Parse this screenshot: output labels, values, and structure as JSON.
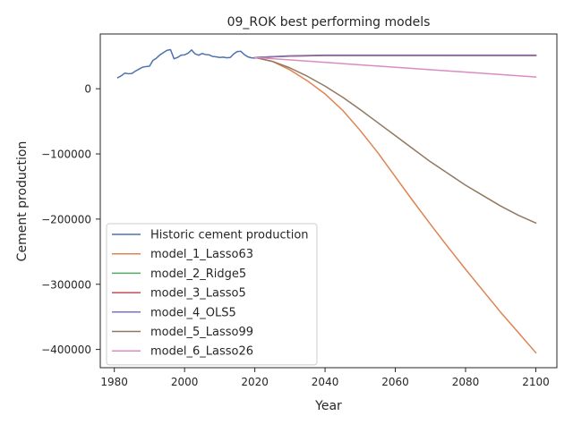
{
  "chart_data": {
    "type": "line",
    "title": "09_ROK best performing models",
    "xlabel": "Year",
    "ylabel": "Cement production",
    "xlim": [
      1976,
      2106
    ],
    "ylim": [
      -428000,
      84000
    ],
    "xticks": [
      1980,
      2000,
      2020,
      2040,
      2060,
      2080,
      2100
    ],
    "xtick_labels": [
      "1980",
      "2000",
      "2020",
      "2040",
      "2060",
      "2080",
      "2100"
    ],
    "yticks": [
      0,
      -100000,
      -200000,
      -300000,
      -400000
    ],
    "ytick_labels": [
      "0",
      "−100000",
      "−200000",
      "−300000",
      "−400000"
    ],
    "grid": false,
    "legend_position": "lower-left",
    "series": [
      {
        "name": "Historic cement production",
        "color": "#4c72b0",
        "x": [
          1981,
          1982,
          1983,
          1984,
          1985,
          1986,
          1987,
          1988,
          1989,
          1990,
          1991,
          1992,
          1993,
          1994,
          1995,
          1996,
          1997,
          1998,
          1999,
          2000,
          2001,
          2002,
          2003,
          2004,
          2005,
          2006,
          2007,
          2008,
          2009,
          2010,
          2011,
          2012,
          2013,
          2014,
          2015,
          2016,
          2017,
          2018,
          2019,
          2020
        ],
        "y": [
          17000,
          20000,
          24000,
          23000,
          23500,
          27000,
          30000,
          33000,
          34000,
          34500,
          43500,
          47000,
          52000,
          55500,
          59000,
          60000,
          46000,
          48000,
          51500,
          52000,
          54500,
          59500,
          53500,
          51500,
          54000,
          52500,
          52000,
          49500,
          49000,
          48000,
          48500,
          47500,
          48000,
          53500,
          57000,
          57500,
          52500,
          49000,
          47500,
          47000
        ]
      },
      {
        "name": "model_1_Lasso63",
        "color": "#dd8452",
        "x": [
          2020,
          2025,
          2030,
          2035,
          2040,
          2045,
          2050,
          2055,
          2060,
          2065,
          2070,
          2075,
          2080,
          2085,
          2090,
          2095,
          2100
        ],
        "y": [
          48000,
          42000,
          29000,
          12000,
          -8000,
          -33000,
          -64000,
          -98000,
          -135000,
          -172000,
          -208000,
          -243000,
          -277000,
          -310000,
          -343000,
          -374000,
          -405000
        ]
      },
      {
        "name": "model_2_Ridge5",
        "color": "#55a868",
        "x": [
          2020,
          2030,
          2040,
          2060,
          2080,
          2100
        ],
        "y": [
          48000,
          50000,
          51000,
          51000,
          51000,
          51000
        ]
      },
      {
        "name": "model_3_Lasso5",
        "color": "#c44e52",
        "x": [
          2020,
          2030,
          2040,
          2060,
          2080,
          2100
        ],
        "y": [
          48000,
          50000,
          51000,
          51000,
          51000,
          51000
        ]
      },
      {
        "name": "model_4_OLS5",
        "color": "#8172b3",
        "x": [
          2020,
          2030,
          2040,
          2060,
          2080,
          2100
        ],
        "y": [
          48000,
          50500,
          51500,
          51500,
          51500,
          51500
        ]
      },
      {
        "name": "model_5_Lasso99",
        "color": "#937860",
        "x": [
          2020,
          2025,
          2030,
          2035,
          2040,
          2045,
          2050,
          2055,
          2060,
          2065,
          2070,
          2075,
          2080,
          2085,
          2090,
          2095,
          2100
        ],
        "y": [
          48000,
          42000,
          32000,
          19000,
          4000,
          -13000,
          -32000,
          -52000,
          -72000,
          -92000,
          -112000,
          -130000,
          -148000,
          -164000,
          -180000,
          -194000,
          -206000
        ]
      },
      {
        "name": "model_6_Lasso26",
        "color": "#da8bc3",
        "x": [
          2020,
          2100
        ],
        "y": [
          48000,
          18000
        ]
      }
    ]
  }
}
